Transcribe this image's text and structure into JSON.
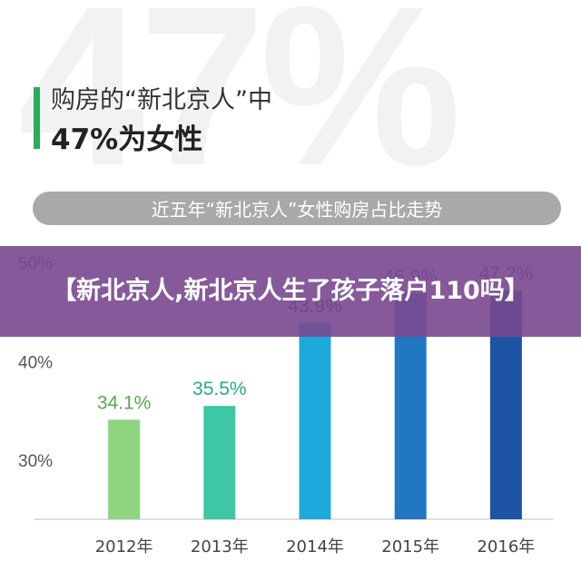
{
  "background_watermark": "47%",
  "headline": {
    "line1": "购房的“新北京人”中",
    "line2": "47%为女性"
  },
  "subtitle_pill": "近五年“新北京人”女性购房占比走势",
  "overlay_title": "【新北京人,新北京人生了孩子落户110吗】",
  "colors": {
    "accent": "#2daa5b",
    "pill": "#a9a9a9",
    "overlay": "#79488f"
  },
  "chart_data": {
    "type": "bar",
    "categories": [
      "2012年",
      "2013年",
      "2014年",
      "2015年",
      "2016年"
    ],
    "values": [
      34.1,
      35.5,
      43.9,
      46.9,
      47.2
    ],
    "value_labels": [
      "34.1%",
      "35.5%",
      "43.9%",
      "46.9%",
      "47.2%"
    ],
    "bar_colors": [
      "#8fd47f",
      "#3dc7a4",
      "#1ea9dc",
      "#2177c2",
      "#1d55a4"
    ],
    "label_colors": [
      "#5aa94c",
      "#2aa98a",
      "#3a3a3a",
      "#1f5fa6",
      "#1f4f95"
    ],
    "yticks": [
      "30%",
      "40%",
      "50%"
    ],
    "ytick_values": [
      30,
      40,
      50
    ],
    "ylim": [
      24,
      52
    ],
    "grid": false
  }
}
